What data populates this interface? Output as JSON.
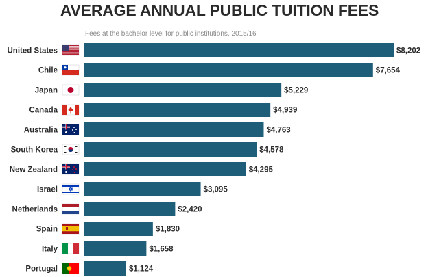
{
  "header": {
    "title": "AVERAGE ANNUAL PUBLIC TUITION FEES",
    "subtitle": "Fees at the bachelor level for public institutions, 2015/16"
  },
  "colors": {
    "bar": "#1f5e78",
    "text": "#2b2b2b"
  },
  "chart_data": {
    "type": "bar",
    "orientation": "horizontal",
    "title": "AVERAGE ANNUAL PUBLIC TUITION FEES",
    "subtitle": "Fees at the bachelor level for public institutions, 2015/16",
    "xlabel": "",
    "ylabel": "",
    "xlim": [
      0,
      8202
    ],
    "grid": false,
    "legend": "none",
    "categories": [
      "United States",
      "Chile",
      "Japan",
      "Canada",
      "Australia",
      "South Korea",
      "New Zealand",
      "Israel",
      "Netherlands",
      "Spain",
      "Italy",
      "Portugal"
    ],
    "values": [
      8202,
      7654,
      5229,
      4939,
      4763,
      4578,
      4295,
      3095,
      2420,
      1830,
      1658,
      1124
    ],
    "value_labels": [
      "$8,202",
      "$7,654",
      "$5,229",
      "$4,939",
      "$4,763",
      "$4,578",
      "$4,295",
      "$3,095",
      "$2,420",
      "$1,830",
      "$1,658",
      "$1,124"
    ],
    "flags": [
      "us-flag-icon",
      "chile-flag-icon",
      "japan-flag-icon",
      "canada-flag-icon",
      "australia-flag-icon",
      "south-korea-flag-icon",
      "new-zealand-flag-icon",
      "israel-flag-icon",
      "netherlands-flag-icon",
      "spain-flag-icon",
      "italy-flag-icon",
      "portugal-flag-icon"
    ]
  }
}
